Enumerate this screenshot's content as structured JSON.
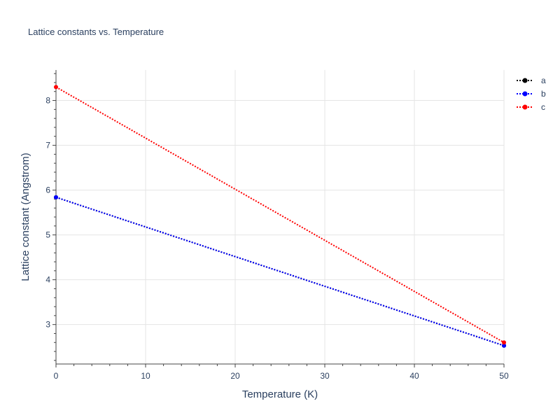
{
  "chart_data": {
    "type": "line",
    "title": "Lattice constants vs. Temperature",
    "xlabel": "Temperature (K)",
    "ylabel": "Lattice constant (Angstrom)",
    "xlim": [
      0,
      50
    ],
    "ylim": [
      2.12,
      8.68
    ],
    "xticks": [
      0,
      10,
      20,
      30,
      40,
      50
    ],
    "yticks": [
      3,
      4,
      5,
      6,
      7,
      8
    ],
    "grid": true,
    "legend_position": "top-right",
    "series": [
      {
        "name": "a",
        "color": "#000000",
        "line_style": "dotted",
        "marker": "circle",
        "x": [
          0,
          50
        ],
        "y": [
          5.84,
          2.53
        ]
      },
      {
        "name": "b",
        "color": "#0000ff",
        "line_style": "dotted",
        "marker": "circle",
        "x": [
          0,
          50
        ],
        "y": [
          5.84,
          2.53
        ]
      },
      {
        "name": "c",
        "color": "#ff0000",
        "line_style": "dotted",
        "marker": "circle",
        "x": [
          0,
          50
        ],
        "y": [
          8.3,
          2.6
        ]
      }
    ]
  }
}
